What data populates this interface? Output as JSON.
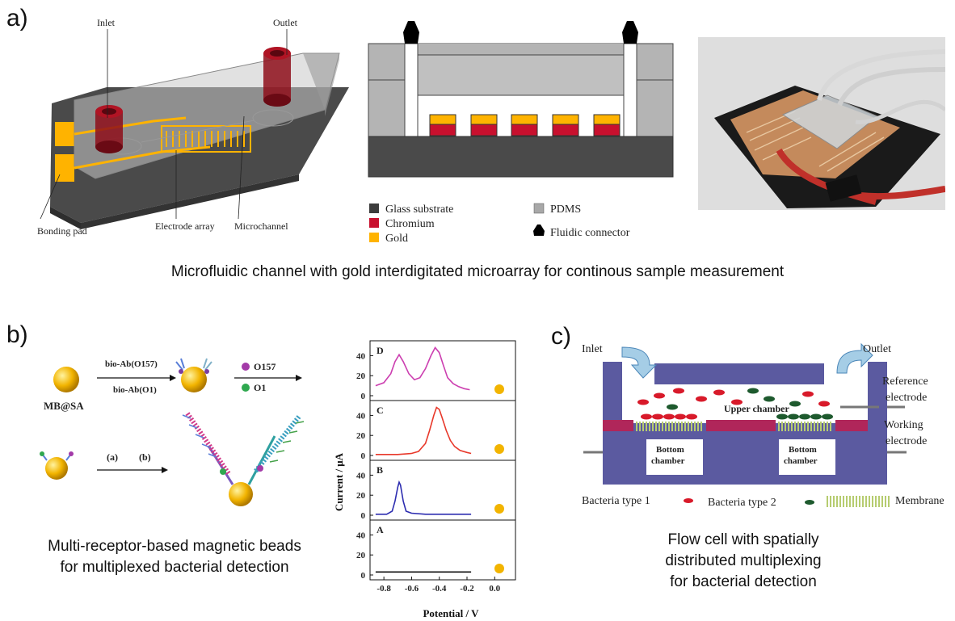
{
  "panel_a": {
    "letter": "a)",
    "device_labels": {
      "inlet": "Inlet",
      "outlet": "Outlet",
      "bonding_pad": "Bonding pad",
      "electrode_array": "Electrode array",
      "microchannel": "Microchannel"
    },
    "legend": [
      {
        "label": "Glass substrate",
        "color": "#3c3c3c"
      },
      {
        "label": "Chromium",
        "color": "#c8102e"
      },
      {
        "label": "Gold",
        "color": "#ffb300"
      },
      {
        "label": "PDMS",
        "color": "#a8a8a8"
      },
      {
        "label": "Fluidic connector",
        "color": "#000000"
      }
    ],
    "caption": "Microfluidic channel with gold interdigitated microarray for continous sample measurement"
  },
  "panel_b": {
    "letter": "b)",
    "scheme": {
      "bead_label": "MB@SA",
      "reagent_1": "bio-Ab(O157)",
      "reagent_2": "bio-Ab(O1)",
      "target_1": "O157",
      "target_2": "O1",
      "step_a": "(a)",
      "step_b": "(b)"
    },
    "caption_line1": "Multi-receptor-based magnetic beads",
    "caption_line2": "for multiplexed bacterial detection"
  },
  "chart_data": {
    "type": "line",
    "xlabel": "Potential / V",
    "ylabel": "Current / μA",
    "xlim": [
      -0.9,
      0.15
    ],
    "x_ticks": [
      "-0.8",
      "-0.6",
      "-0.4",
      "-0.2",
      "0.0"
    ],
    "ylim": [
      0,
      50
    ],
    "y_ticks": [
      "0",
      "20",
      "40"
    ],
    "panels": [
      {
        "label": "D",
        "color": "#cc3fb0",
        "x": [
          -0.86,
          -0.8,
          -0.75,
          -0.72,
          -0.69,
          -0.66,
          -0.62,
          -0.58,
          -0.54,
          -0.5,
          -0.46,
          -0.43,
          -0.4,
          -0.37,
          -0.34,
          -0.3,
          -0.26,
          -0.22,
          -0.18
        ],
        "y": [
          10,
          13,
          22,
          34,
          41,
          34,
          22,
          16,
          18,
          27,
          40,
          48,
          43,
          30,
          18,
          12,
          9,
          7,
          6
        ]
      },
      {
        "label": "C",
        "color": "#e8382a",
        "x": [
          -0.86,
          -0.7,
          -0.6,
          -0.55,
          -0.5,
          -0.47,
          -0.44,
          -0.42,
          -0.4,
          -0.38,
          -0.35,
          -0.32,
          -0.29,
          -0.25,
          -0.2,
          -0.17
        ],
        "y": [
          1,
          1,
          2,
          4,
          12,
          25,
          40,
          48,
          46,
          38,
          25,
          15,
          9,
          5,
          3,
          2
        ]
      },
      {
        "label": "B",
        "color": "#2d2db0",
        "x": [
          -0.86,
          -0.78,
          -0.74,
          -0.72,
          -0.7,
          -0.69,
          -0.68,
          -0.66,
          -0.64,
          -0.6,
          -0.5,
          -0.3,
          -0.17
        ],
        "y": [
          1,
          1,
          4,
          14,
          28,
          33,
          30,
          14,
          4,
          2,
          1,
          1,
          1
        ]
      },
      {
        "label": "A",
        "color": "#111111",
        "x": [
          -0.86,
          -0.6,
          -0.4,
          -0.17
        ],
        "y": [
          3,
          3,
          3,
          3
        ]
      }
    ]
  },
  "panel_c": {
    "letter": "c)",
    "labels": {
      "inlet": "Inlet",
      "outlet": "Outlet",
      "reference_electrode_1": "Reference",
      "reference_electrode_2": "electrode",
      "working_electrode_1": "Working",
      "working_electrode_2": "electrode",
      "upper_chamber": "Upper chamber",
      "bottom_chamber_word": "Bottom",
      "chamber_word": "chamber"
    },
    "legend": {
      "bacteria_1": "Bacteria type 1",
      "bacteria_2": "Bacteria type 2",
      "membrane": "Membrane"
    },
    "caption_line1": "Flow cell with spatially",
    "caption_line2": "distributed multiplexing",
    "caption_line3": "for bacterial detection"
  },
  "colors": {
    "gold": "#ffb300",
    "chromium": "#c8102e",
    "pdms": "#a8a8a8",
    "substrate": "#3c3c3c",
    "flowcell_blue": "#5b5aa0",
    "flowcell_red": "#b0265a"
  }
}
